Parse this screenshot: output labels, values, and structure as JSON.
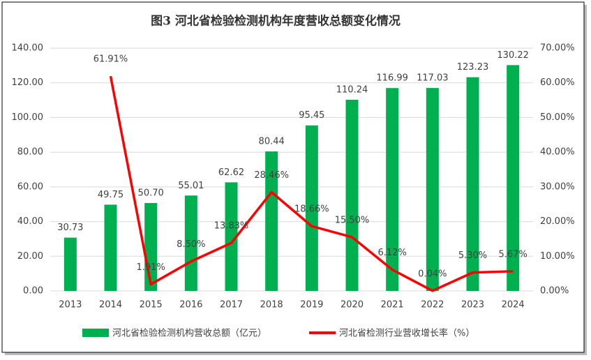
{
  "chart_data": {
    "type": "bar",
    "title": "图3 河北省检验检测机构年度营收总额变化情况",
    "categories": [
      "2013",
      "2014",
      "2015",
      "2016",
      "2017",
      "2018",
      "2019",
      "2020",
      "2021",
      "2022",
      "2023",
      "2024"
    ],
    "series": [
      {
        "name": "河北省检验检测机构营收总额（亿元）",
        "type": "bar",
        "color": "#00b050",
        "values": [
          30.73,
          49.75,
          50.7,
          55.01,
          62.62,
          80.44,
          95.45,
          110.24,
          116.99,
          117.03,
          123.23,
          130.22
        ],
        "value_labels": [
          "30.73",
          "49.75",
          "50.70",
          "55.01",
          "62.62",
          "80.44",
          "95.45",
          "110.24",
          "116.99",
          "117.03",
          "123.23",
          "130.22"
        ]
      },
      {
        "name": "河北省检测行业营收增长率（%）",
        "type": "line",
        "axis": "y2",
        "color": "#ff0000",
        "values": [
          null,
          61.91,
          1.91,
          8.5,
          13.83,
          28.46,
          18.66,
          15.5,
          6.12,
          0.04,
          5.3,
          5.67
        ],
        "value_labels": [
          null,
          "61.91%",
          "1.91%",
          "8.50%",
          "13.83%",
          "28.46%",
          "18.66%",
          "15.50%",
          "6.12%",
          "0.04%",
          "5.30%",
          "5.67%"
        ]
      }
    ],
    "ylim": [
      0,
      140
    ],
    "yticks": [
      {
        "value": 0,
        "label": "0.00"
      },
      {
        "value": 20,
        "label": "20.00"
      },
      {
        "value": 40,
        "label": "40.00"
      },
      {
        "value": 60,
        "label": "60.00"
      },
      {
        "value": 80,
        "label": "80.00"
      },
      {
        "value": 100,
        "label": "100.00"
      },
      {
        "value": 120,
        "label": "120.00"
      },
      {
        "value": 140,
        "label": "140.00"
      }
    ],
    "y2lim": [
      0,
      70
    ],
    "y2ticks": [
      {
        "value": 0,
        "label": "0.00%"
      },
      {
        "value": 10,
        "label": "10.00%"
      },
      {
        "value": 20,
        "label": "20.00%"
      },
      {
        "value": 30,
        "label": "30.00%"
      },
      {
        "value": 40,
        "label": "40.00%"
      },
      {
        "value": 50,
        "label": "50.00%"
      },
      {
        "value": 60,
        "label": "60.00%"
      },
      {
        "value": 70,
        "label": "70.00%"
      }
    ],
    "grid": true
  }
}
